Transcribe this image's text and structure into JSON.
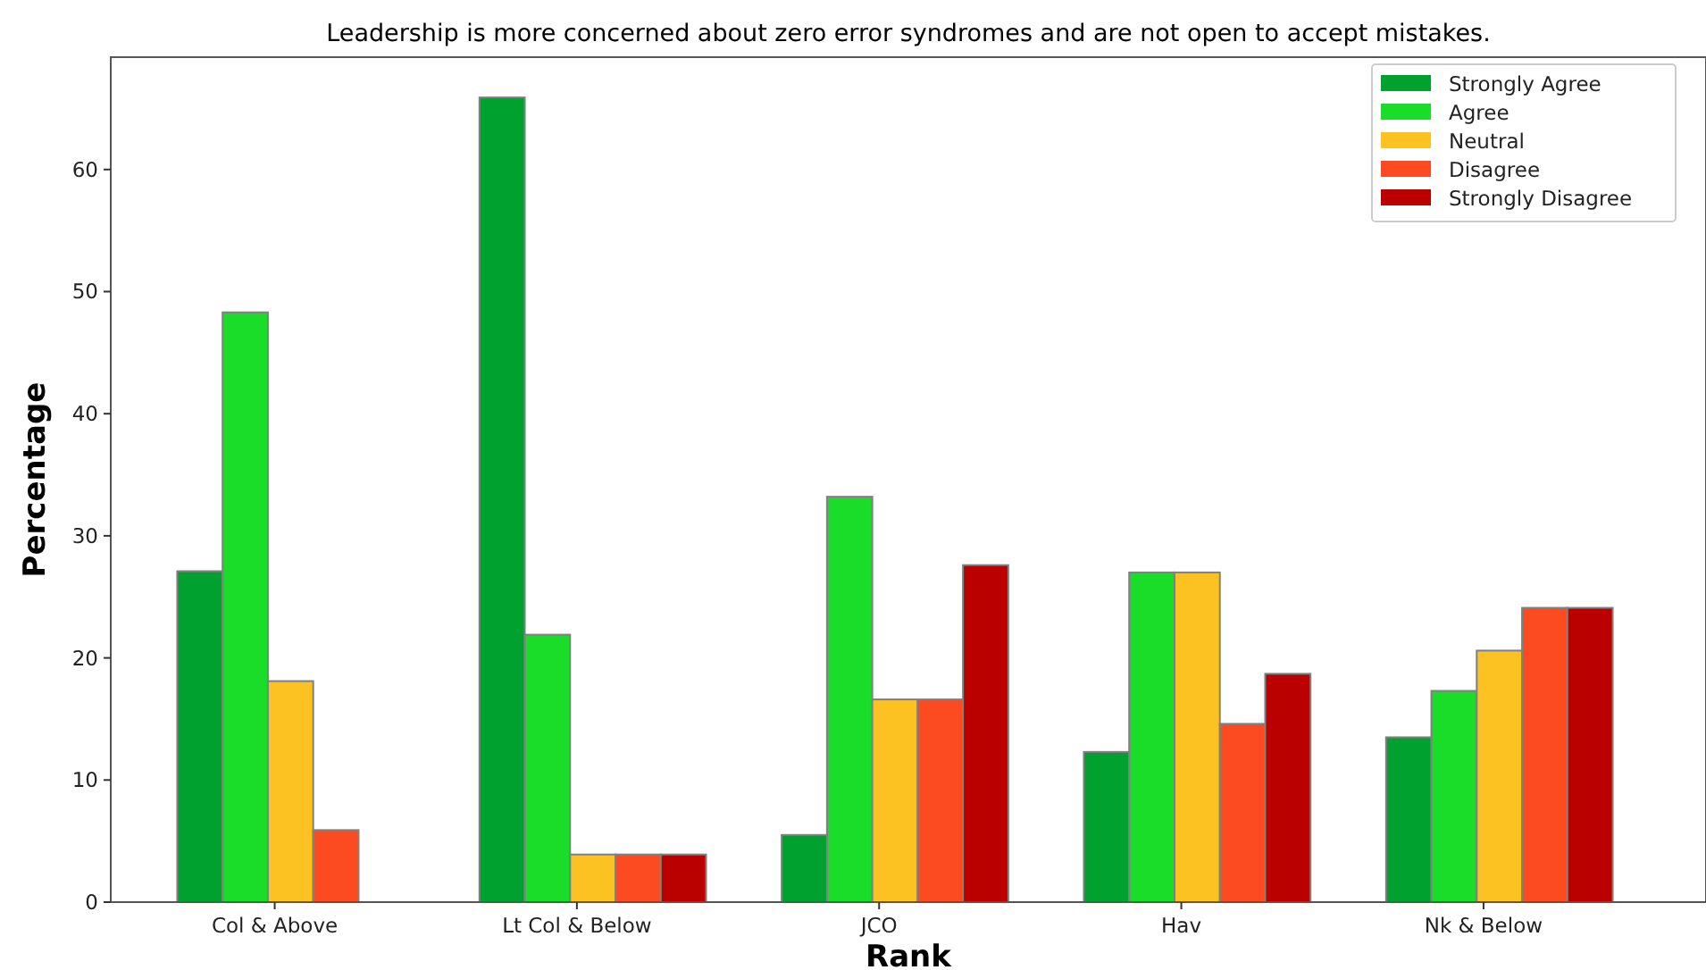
{
  "chart_data": {
    "type": "bar",
    "title": "Leadership is more concerned about zero error syndromes and are not open to accept mistakes.",
    "xlabel": "Rank",
    "ylabel": "Percentage",
    "categories": [
      "Col & Above",
      "Lt Col & Below",
      "JCO",
      "Hav",
      "Nk & Below"
    ],
    "series": [
      {
        "name": "Strongly Agree",
        "color": "#00a12e",
        "values": [
          27.1,
          65.9,
          5.5,
          12.3,
          13.5
        ]
      },
      {
        "name": "Agree",
        "color": "#19dd29",
        "values": [
          48.3,
          21.9,
          33.2,
          27.0,
          17.3
        ]
      },
      {
        "name": "Neutral",
        "color": "#fbc222",
        "values": [
          18.1,
          3.9,
          16.6,
          27.0,
          20.6
        ]
      },
      {
        "name": "Disagree",
        "color": "#fc4b21",
        "values": [
          5.9,
          3.9,
          16.6,
          14.6,
          24.1
        ]
      },
      {
        "name": "Strongly Disagree",
        "color": "#bb0000",
        "values": [
          null,
          3.9,
          27.6,
          18.7,
          24.1
        ]
      }
    ],
    "ylim": [
      0,
      69.2
    ],
    "yticks": [
      0,
      10,
      20,
      30,
      40,
      50,
      60
    ],
    "grid": false,
    "legend": "top right"
  }
}
